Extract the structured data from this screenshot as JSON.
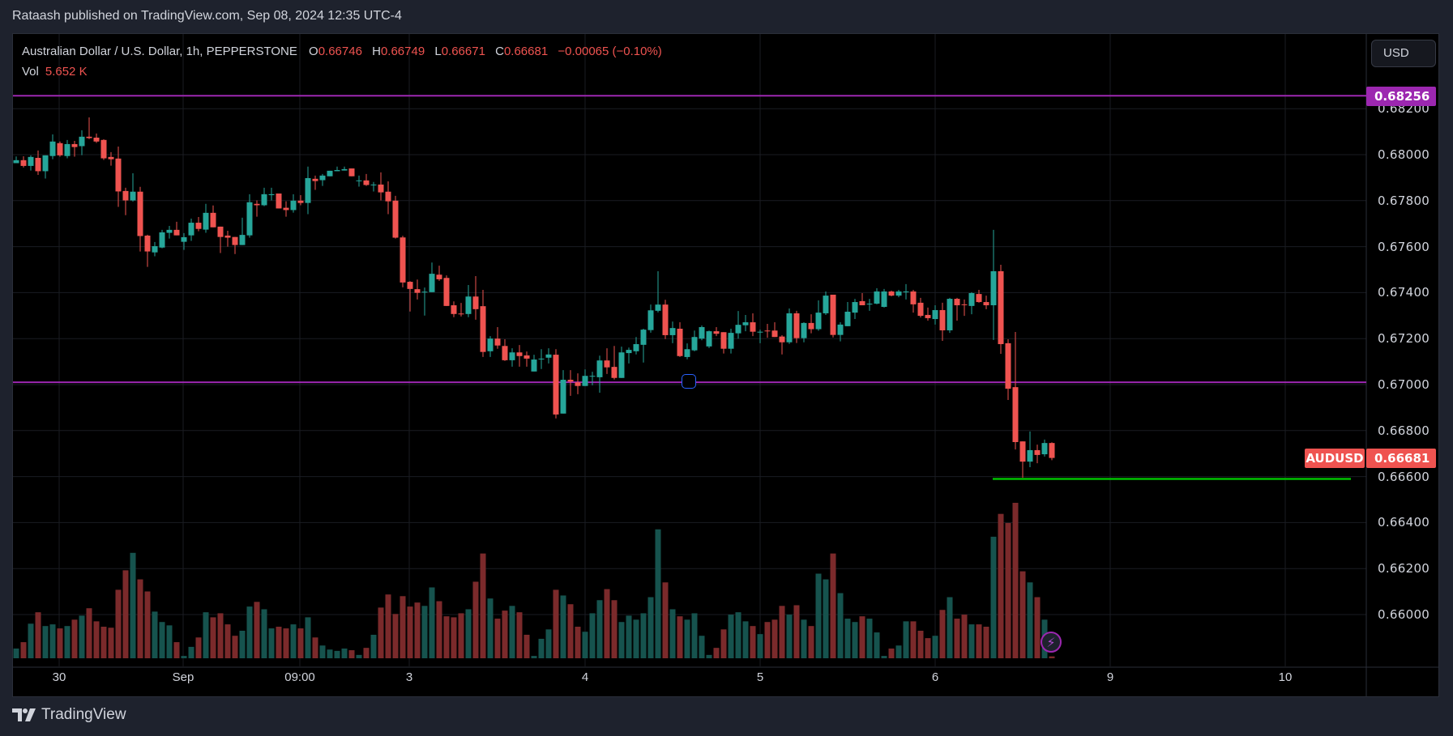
{
  "header": {
    "published": "Rataash published on TradingView.com, Sep 08, 2024 12:35 UTC-4"
  },
  "legend": {
    "symbol": "Australian Dollar / U.S. Dollar, 1h, PEPPERSTONE",
    "o_label": "O",
    "o": "0.66746",
    "h_label": "H",
    "h": "0.66749",
    "l_label": "L",
    "l": "0.66671",
    "c_label": "C",
    "c": "0.66681",
    "change": "−0.00065 (−0.10%)",
    "vol_label": "Vol",
    "vol": "5.652 K"
  },
  "currency_button": "USD",
  "symbol_tag": "AUDUSD",
  "last_price": "0.66681",
  "branding": "TradingView",
  "colors": {
    "up": "#26a69a",
    "down": "#ef5350",
    "vol_up": "#16534e",
    "vol_down": "#7b2a2b",
    "hline": "#9c27b0",
    "support": "#00c000",
    "bg": "#000000",
    "frame": "#1e222d"
  },
  "icons": {
    "bolt": "lightning-icon",
    "logo": "tradingview-logo"
  },
  "chart_data": {
    "type": "candlestick",
    "interval": "1h",
    "y_axis": {
      "range": [
        0.6584,
        0.6839
      ],
      "ticks": [
        "0.68200",
        "0.68000",
        "0.67800",
        "0.67600",
        "0.67400",
        "0.67200",
        "0.67000",
        "0.66800",
        "0.66600",
        "0.66400",
        "0.66200",
        "0.66000"
      ]
    },
    "x_axis": {
      "ticks": [
        "30",
        "Sep",
        "09:00",
        "3",
        "4",
        "5",
        "6",
        "9",
        "10"
      ]
    },
    "grid": true,
    "horizontal_lines": [
      {
        "price": 0.68256,
        "label": "0.68256",
        "color": "#9c27b0"
      },
      {
        "price": 0.6701,
        "color": "#9c27b0"
      }
    ],
    "support_line": {
      "price": 0.6659,
      "color": "#00c000"
    },
    "volume_unit": "K",
    "candles": [
      [
        0.67963,
        0.67992,
        0.67963,
        0.67976
      ],
      [
        0.67976,
        0.67993,
        0.67944,
        0.67951
      ],
      [
        0.67951,
        0.67997,
        0.67931,
        0.6799
      ],
      [
        0.67986,
        0.68018,
        0.67912,
        0.67928
      ],
      [
        0.67928,
        0.67997,
        0.67896,
        0.67997
      ],
      [
        0.67994,
        0.68088,
        0.6798,
        0.68057
      ],
      [
        0.6805,
        0.68057,
        0.67991,
        0.67997
      ],
      [
        0.67994,
        0.68064,
        0.67984,
        0.68046
      ],
      [
        0.68046,
        0.6806,
        0.67991,
        0.68033
      ],
      [
        0.68037,
        0.68106,
        0.67998,
        0.68078
      ],
      [
        0.68078,
        0.68162,
        0.68068,
        0.68072
      ],
      [
        0.68074,
        0.68092,
        0.68051,
        0.68057
      ],
      [
        0.68064,
        0.68067,
        0.67977,
        0.67984
      ],
      [
        0.6799,
        0.68011,
        0.67952,
        0.6798
      ],
      [
        0.67983,
        0.68035,
        0.67773,
        0.6784
      ],
      [
        0.67842,
        0.67856,
        0.67737,
        0.67801
      ],
      [
        0.67801,
        0.67919,
        0.67796,
        0.67839
      ],
      [
        0.67839,
        0.6786,
        0.67579,
        0.67646
      ],
      [
        0.67648,
        0.67652,
        0.67512,
        0.67579
      ],
      [
        0.67575,
        0.6762,
        0.67558,
        0.67602
      ],
      [
        0.67596,
        0.67673,
        0.67593,
        0.67662
      ],
      [
        0.6766,
        0.6769,
        0.67635,
        0.67673
      ],
      [
        0.67673,
        0.67708,
        0.67649,
        0.67649
      ],
      [
        0.67621,
        0.67659,
        0.67586,
        0.67641
      ],
      [
        0.67649,
        0.67722,
        0.67625,
        0.67704
      ],
      [
        0.67704,
        0.67729,
        0.67667,
        0.67677
      ],
      [
        0.67674,
        0.67786,
        0.6766,
        0.67747
      ],
      [
        0.67747,
        0.67779,
        0.67684,
        0.67684
      ],
      [
        0.67687,
        0.67687,
        0.67572,
        0.67642
      ],
      [
        0.67648,
        0.67669,
        0.676,
        0.67639
      ],
      [
        0.67642,
        0.67642,
        0.67568,
        0.67607
      ],
      [
        0.67607,
        0.67726,
        0.67607,
        0.67651
      ],
      [
        0.67649,
        0.67828,
        0.67639,
        0.67793
      ],
      [
        0.67786,
        0.67801,
        0.6773,
        0.6778
      ],
      [
        0.6778,
        0.67856,
        0.67776,
        0.67828
      ],
      [
        0.67824,
        0.67856,
        0.67801,
        0.67828
      ],
      [
        0.67831,
        0.67831,
        0.67766,
        0.67766
      ],
      [
        0.67769,
        0.67797,
        0.6773,
        0.67759
      ],
      [
        0.67759,
        0.67828,
        0.67748,
        0.678
      ],
      [
        0.678,
        0.67824,
        0.6778,
        0.6779
      ],
      [
        0.6779,
        0.67948,
        0.67741,
        0.67898
      ],
      [
        0.67895,
        0.67909,
        0.67847,
        0.67885
      ],
      [
        0.67889,
        0.67916,
        0.67864,
        0.67909
      ],
      [
        0.67906,
        0.6793,
        0.67906,
        0.6793
      ],
      [
        0.67928,
        0.67948,
        0.67928,
        0.67933
      ],
      [
        0.67931,
        0.67948,
        0.67931,
        0.67937
      ],
      [
        0.6794,
        0.6794,
        0.67906,
        0.67906
      ],
      [
        0.67886,
        0.67909,
        0.67861,
        0.67888
      ],
      [
        0.67888,
        0.67916,
        0.67864,
        0.67868
      ],
      [
        0.67868,
        0.67881,
        0.6784,
        0.6787
      ],
      [
        0.6787,
        0.67923,
        0.67801,
        0.67836
      ],
      [
        0.67839,
        0.67884,
        0.67741,
        0.67797
      ],
      [
        0.678,
        0.67821,
        0.67635,
        0.67639
      ],
      [
        0.6764,
        0.67647,
        0.67423,
        0.67444
      ],
      [
        0.67447,
        0.6745,
        0.67318,
        0.67416
      ],
      [
        0.67415,
        0.67457,
        0.6737,
        0.67399
      ],
      [
        0.67402,
        0.67422,
        0.673,
        0.67404
      ],
      [
        0.67402,
        0.67531,
        0.67402,
        0.67482
      ],
      [
        0.67478,
        0.67517,
        0.67451,
        0.67458
      ],
      [
        0.67464,
        0.67475,
        0.67342,
        0.67342
      ],
      [
        0.67345,
        0.67362,
        0.67293,
        0.67307
      ],
      [
        0.67309,
        0.67355,
        0.67296,
        0.67307
      ],
      [
        0.67307,
        0.67433,
        0.67293,
        0.67383
      ],
      [
        0.67383,
        0.67472,
        0.67282,
        0.67328
      ],
      [
        0.67341,
        0.67412,
        0.6712,
        0.67142
      ],
      [
        0.67145,
        0.67211,
        0.6712,
        0.672
      ],
      [
        0.672,
        0.6725,
        0.67156,
        0.6717
      ],
      [
        0.67168,
        0.67197,
        0.67103,
        0.67106
      ],
      [
        0.67106,
        0.67158,
        0.67078,
        0.6714
      ],
      [
        0.6714,
        0.67172,
        0.67078,
        0.67124
      ],
      [
        0.67127,
        0.67144,
        0.67078,
        0.67113
      ],
      [
        0.67057,
        0.6713,
        0.67057,
        0.67109
      ],
      [
        0.6711,
        0.67154,
        0.67068,
        0.67113
      ],
      [
        0.67117,
        0.67158,
        0.67092,
        0.67131
      ],
      [
        0.6713,
        0.67154,
        0.66853,
        0.6687
      ],
      [
        0.66874,
        0.67063,
        0.66874,
        0.67021
      ],
      [
        0.67021,
        0.67063,
        0.66951,
        0.67013
      ],
      [
        0.6701,
        0.67049,
        0.66958,
        0.66994
      ],
      [
        0.66994,
        0.67066,
        0.66994,
        0.67038
      ],
      [
        0.67036,
        0.67056,
        0.66997,
        0.67038
      ],
      [
        0.67032,
        0.67126,
        0.66965,
        0.67105
      ],
      [
        0.67105,
        0.67158,
        0.67046,
        0.67075
      ],
      [
        0.67077,
        0.67168,
        0.67022,
        0.67029
      ],
      [
        0.67029,
        0.67165,
        0.67029,
        0.6714
      ],
      [
        0.67137,
        0.67161,
        0.67092,
        0.67151
      ],
      [
        0.67145,
        0.67207,
        0.67131,
        0.67176
      ],
      [
        0.67173,
        0.67243,
        0.67096,
        0.67239
      ],
      [
        0.67237,
        0.67348,
        0.67226,
        0.67323
      ],
      [
        0.67321,
        0.67493,
        0.67314,
        0.67348
      ],
      [
        0.67348,
        0.67369,
        0.67198,
        0.67215
      ],
      [
        0.67215,
        0.67274,
        0.6718,
        0.67246
      ],
      [
        0.67243,
        0.67271,
        0.6712,
        0.67124
      ],
      [
        0.6712,
        0.67179,
        0.6711,
        0.67154
      ],
      [
        0.67149,
        0.67235,
        0.67145,
        0.67207
      ],
      [
        0.672,
        0.67257,
        0.67193,
        0.6725
      ],
      [
        0.67166,
        0.67235,
        0.67159,
        0.67232
      ],
      [
        0.67232,
        0.6725,
        0.67211,
        0.67221
      ],
      [
        0.67228,
        0.67228,
        0.67135,
        0.67156
      ],
      [
        0.67156,
        0.67243,
        0.67135,
        0.67225
      ],
      [
        0.67223,
        0.6732,
        0.672,
        0.6726
      ],
      [
        0.67258,
        0.67303,
        0.67232,
        0.67271
      ],
      [
        0.67271,
        0.6731,
        0.67211,
        0.6723
      ],
      [
        0.67227,
        0.67239,
        0.6718,
        0.6723
      ],
      [
        0.67235,
        0.67264,
        0.67204,
        0.67233
      ],
      [
        0.67235,
        0.67271,
        0.67207,
        0.67207
      ],
      [
        0.67209,
        0.67215,
        0.67131,
        0.67184
      ],
      [
        0.67184,
        0.67331,
        0.67177,
        0.6731
      ],
      [
        0.6731,
        0.67321,
        0.67181,
        0.67202
      ],
      [
        0.67202,
        0.67271,
        0.67184,
        0.67268
      ],
      [
        0.67268,
        0.67306,
        0.67223,
        0.67241
      ],
      [
        0.67241,
        0.67366,
        0.67234,
        0.67313
      ],
      [
        0.6731,
        0.67405,
        0.67303,
        0.67387
      ],
      [
        0.67391,
        0.67391,
        0.67205,
        0.67216
      ],
      [
        0.67216,
        0.67271,
        0.67188,
        0.67261
      ],
      [
        0.67254,
        0.67359,
        0.67254,
        0.67317
      ],
      [
        0.67313,
        0.67373,
        0.67285,
        0.67359
      ],
      [
        0.67363,
        0.67398,
        0.67345,
        0.67345
      ],
      [
        0.6735,
        0.67373,
        0.67321,
        0.67352
      ],
      [
        0.67352,
        0.67419,
        0.67349,
        0.67405
      ],
      [
        0.67338,
        0.67416,
        0.67335,
        0.67405
      ],
      [
        0.67405,
        0.67409,
        0.67384,
        0.67387
      ],
      [
        0.67387,
        0.67412,
        0.6738,
        0.67405
      ],
      [
        0.67403,
        0.67437,
        0.6737,
        0.67405
      ],
      [
        0.67405,
        0.67412,
        0.67313,
        0.67349
      ],
      [
        0.67356,
        0.67377,
        0.67292,
        0.67299
      ],
      [
        0.67303,
        0.67335,
        0.67278,
        0.67289
      ],
      [
        0.67285,
        0.67345,
        0.67261,
        0.67324
      ],
      [
        0.67324,
        0.67356,
        0.6719,
        0.67236
      ],
      [
        0.67236,
        0.67377,
        0.67225,
        0.67373
      ],
      [
        0.67373,
        0.67377,
        0.67278,
        0.67345
      ],
      [
        0.67349,
        0.6737,
        0.67299,
        0.67346
      ],
      [
        0.67342,
        0.67402,
        0.67306,
        0.67398
      ],
      [
        0.67394,
        0.67412,
        0.67356,
        0.67359
      ],
      [
        0.67359,
        0.67387,
        0.67328,
        0.67345
      ],
      [
        0.67345,
        0.67673,
        0.67194,
        0.67493
      ],
      [
        0.67493,
        0.67521,
        0.67134,
        0.67176
      ],
      [
        0.6718,
        0.67197,
        0.66933,
        0.66982
      ],
      [
        0.66989,
        0.67229,
        0.66718,
        0.6675
      ],
      [
        0.66753,
        0.66753,
        0.66595,
        0.66665
      ],
      [
        0.66665,
        0.66796,
        0.66641,
        0.66715
      ],
      [
        0.66715,
        0.66739,
        0.66658,
        0.66694
      ],
      [
        0.66697,
        0.66761,
        0.66687,
        0.66746
      ],
      [
        0.66746,
        0.66749,
        0.66671,
        0.66681
      ]
    ],
    "volumes": [
      29,
      48,
      103,
      137,
      96,
      101,
      89,
      96,
      115,
      127,
      149,
      110,
      94,
      91,
      204,
      262,
      314,
      235,
      199,
      139,
      108,
      98,
      48,
      7,
      34,
      62,
      137,
      122,
      134,
      101,
      67,
      82,
      154,
      168,
      146,
      89,
      94,
      89,
      101,
      89,
      122,
      62,
      38,
      26,
      22,
      29,
      24,
      10,
      31,
      70,
      151,
      190,
      132,
      185,
      154,
      166,
      156,
      211,
      170,
      125,
      122,
      134,
      146,
      228,
      312,
      178,
      118,
      142,
      156,
      137,
      70,
      7,
      58,
      86,
      204,
      187,
      161,
      94,
      79,
      134,
      173,
      206,
      173,
      108,
      127,
      115,
      134,
      182,
      384,
      226,
      146,
      125,
      115,
      134,
      67,
      10,
      31,
      86,
      130,
      137,
      110,
      96,
      72,
      108,
      115,
      156,
      130,
      158,
      115,
      96,
      252,
      235,
      312,
      194,
      118,
      108,
      125,
      118,
      77,
      7,
      29,
      38,
      110,
      110,
      82,
      60,
      67,
      144,
      182,
      118,
      130,
      101,
      101,
      94,
      362,
      430,
      403,
      463,
      259,
      226,
      182,
      115,
      5.652
    ]
  }
}
